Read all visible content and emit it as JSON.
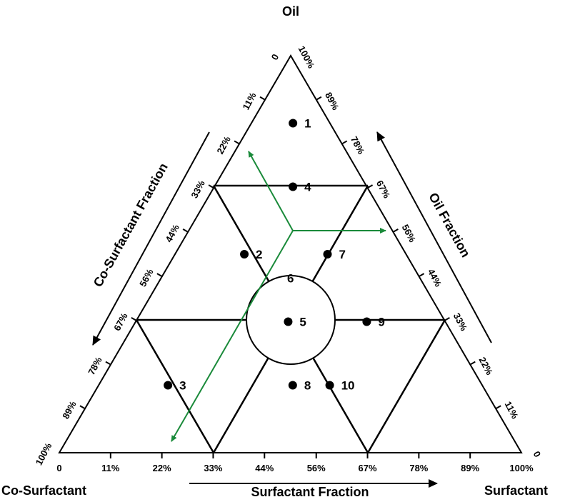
{
  "vertices": {
    "top": "Oil",
    "bottom_left": "Co-Surfactant",
    "bottom_right": "Surfactant"
  },
  "axis_titles": {
    "bottom": "Surfactant  Fraction",
    "left": "Co-Surfactant Fraction",
    "right": "Oil Fraction"
  },
  "bottom_ticks": [
    "0",
    "11%",
    "22%",
    "33%",
    "44%",
    "56%",
    "67%",
    "78%",
    "89%",
    "100%"
  ],
  "left_ticks": [
    "100%",
    "89%",
    "78%",
    "67%",
    "56%",
    "44%",
    "33%",
    "22%",
    "11%",
    "0"
  ],
  "right_ticks": [
    "100%",
    "89%",
    "78%",
    "67%",
    "56%",
    "44%",
    "33%",
    "22%",
    "11%",
    "0"
  ],
  "points": [
    {
      "label": "1",
      "oil": 0.83,
      "surf": 0.09
    },
    {
      "label": "2",
      "oil": 0.5,
      "surf": 0.15
    },
    {
      "label": "3",
      "oil": 0.17,
      "surf": 0.15
    },
    {
      "label": "4",
      "oil": 0.67,
      "surf": 0.17
    },
    {
      "label": "5",
      "oil": 0.33,
      "surf": 0.33
    },
    {
      "label": "6",
      "oil": 0.44,
      "surf": 0.28
    },
    {
      "label": "7",
      "oil": 0.5,
      "surf": 0.33
    },
    {
      "label": "8",
      "oil": 0.17,
      "surf": 0.42
    },
    {
      "label": "9",
      "oil": 0.33,
      "surf": 0.5
    },
    {
      "label": "10",
      "oil": 0.17,
      "surf": 0.5
    }
  ],
  "colors": {
    "lines": "#000000",
    "arrows": "#1a8a3a"
  }
}
